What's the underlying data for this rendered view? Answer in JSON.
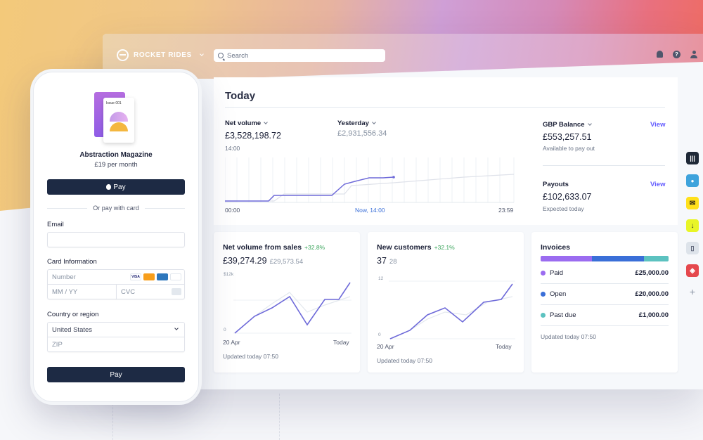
{
  "dashboard": {
    "brand": "ROCKET RIDES",
    "search_placeholder": "Search",
    "today": {
      "title": "Today",
      "net_volume": {
        "label": "Net volume",
        "value": "£3,528,198.72",
        "time": "14:00"
      },
      "yesterday": {
        "label": "Yesterday",
        "value": "£2,931,556.34"
      },
      "chart_x": {
        "start": "00:00",
        "now": "Now, 14:00",
        "end": "23:59"
      },
      "gbp_balance": {
        "label": "GBP Balance",
        "value": "£553,257.51",
        "sub": "Available to pay out",
        "link": "View"
      },
      "payouts": {
        "label": "Payouts",
        "value": "£102,633.07",
        "sub": "Expected today",
        "link": "View"
      }
    },
    "cards": {
      "net_sales": {
        "title": "Net volume from sales",
        "delta": "+32.8%",
        "value": "£39,274.29",
        "prev": "£29,573.54",
        "y_top": "$12k",
        "y_bottom": "0",
        "x_start": "20 Apr",
        "x_end": "Today",
        "updated": "Updated today 07:50"
      },
      "new_customers": {
        "title": "New customers",
        "delta": "+32.1%",
        "value": "37",
        "prev": "28",
        "y_top": "12",
        "y_bottom": "0",
        "x_start": "20 Apr",
        "x_end": "Today",
        "updated": "Updated today 07:50"
      },
      "invoices": {
        "title": "Invoices",
        "rows": [
          {
            "label": "Paid",
            "amount": "£25,000.00",
            "color": "#9b6cf0"
          },
          {
            "label": "Open",
            "amount": "£20,000.00",
            "color": "#3a6fd8"
          },
          {
            "label": "Past due",
            "amount": "£1,000.00",
            "color": "#5cc2c0"
          }
        ],
        "updated": "Updated today 07:50"
      }
    }
  },
  "checkout": {
    "magazine_issue": "Issue 001",
    "product_name": "Abstraction Magazine",
    "price": "£19 per month",
    "apple_pay": "Pay",
    "or_pay": "Or pay with card",
    "email_label": "Email",
    "card_info_label": "Card Information",
    "number_placeholder": "Number",
    "expiry_placeholder": "MM / YY",
    "cvc_placeholder": "CVC",
    "country_label": "Country or region",
    "country_value": "United States",
    "zip_placeholder": "ZIP",
    "pay_button": "Pay",
    "card_brands": [
      "VISA",
      "MC",
      "AMEX",
      "DISCOVER"
    ]
  },
  "colors": {
    "accent": "#635bff",
    "line": "#6e6ad9",
    "positive": "#3ba55c"
  }
}
